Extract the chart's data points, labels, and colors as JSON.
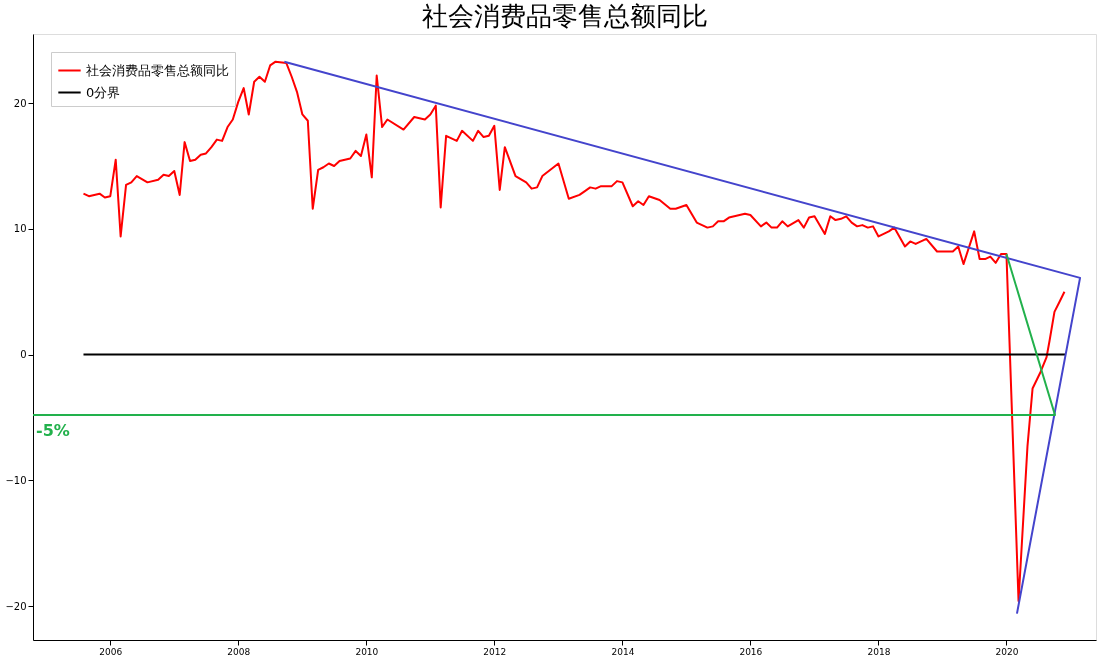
{
  "chart_data": {
    "type": "line",
    "title": "社会消费品零售总额同比",
    "legend": "top left",
    "line_style": "solid",
    "marker": "none",
    "xlim": [
      "2004-10-17",
      "2021-05-26"
    ],
    "xticks": [
      "2006",
      "2008",
      "2010",
      "2012",
      "2014",
      "2016",
      "2018",
      "2020"
    ],
    "ylim": [
      -22.7,
      25.5
    ],
    "yticks": [
      -20,
      -10,
      0,
      10,
      20
    ],
    "series": [
      {
        "name": "社会消费品零售总额同比",
        "color": "#ff0000",
        "x": [
          "2005-08",
          "2005-09",
          "2005-11",
          "2005-12",
          "2006-01",
          "2006-02",
          "2006-03",
          "2006-04",
          "2006-05",
          "2006-06",
          "2006-08",
          "2006-10",
          "2006-11",
          "2006-12",
          "2007-01",
          "2007-02",
          "2007-03",
          "2007-04",
          "2007-05",
          "2007-06",
          "2007-07",
          "2007-08",
          "2007-09",
          "2007-10",
          "2007-11",
          "2007-12",
          "2008-01",
          "2008-02",
          "2008-03",
          "2008-04",
          "2008-05",
          "2008-06",
          "2008-07",
          "2008-08",
          "2008-10",
          "2008-11",
          "2008-12",
          "2009-01",
          "2009-02",
          "2009-03",
          "2009-04",
          "2009-05",
          "2009-06",
          "2009-07",
          "2009-08",
          "2009-10",
          "2009-11",
          "2009-12",
          "2010-01",
          "2010-02",
          "2010-03",
          "2010-04",
          "2010-05",
          "2010-08",
          "2010-10",
          "2010-12",
          "2011-01",
          "2011-02",
          "2011-03",
          "2011-04",
          "2011-06",
          "2011-07",
          "2011-09",
          "2011-10",
          "2011-11",
          "2011-12",
          "2012-01",
          "2012-02",
          "2012-03",
          "2012-05",
          "2012-07",
          "2012-08",
          "2012-09",
          "2012-10",
          "2013-01",
          "2013-03",
          "2013-05",
          "2013-06",
          "2013-07",
          "2013-08",
          "2013-09",
          "2013-11",
          "2013-12",
          "2014-01",
          "2014-03",
          "2014-04",
          "2014-05",
          "2014-06",
          "2014-08",
          "2014-10",
          "2014-11",
          "2015-01",
          "2015-03",
          "2015-05",
          "2015-06",
          "2015-07",
          "2015-08",
          "2015-09",
          "2015-12",
          "2016-01",
          "2016-03",
          "2016-04",
          "2016-05",
          "2016-06",
          "2016-07",
          "2016-08",
          "2016-10",
          "2016-11",
          "2016-12",
          "2017-01",
          "2017-03",
          "2017-04",
          "2017-05",
          "2017-06",
          "2017-07",
          "2017-08",
          "2017-09",
          "2017-10",
          "2017-11",
          "2017-12",
          "2018-01",
          "2018-03",
          "2018-04",
          "2018-06",
          "2018-07",
          "2018-08",
          "2018-10",
          "2018-12",
          "2019-03",
          "2019-04",
          "2019-05",
          "2019-07",
          "2019-08",
          "2019-09",
          "2019-10",
          "2019-11",
          "2019-12",
          "2020-01-01",
          "2020-03-10",
          "2020-04-30",
          "2020-05-29",
          "2020-07-13",
          "2020-08-17",
          "2020-09-03",
          "2020-10-01",
          "2020-10-30",
          "2020-11-27"
        ],
        "values": [
          12.8,
          12.6,
          12.8,
          12.5,
          12.6,
          15.5,
          9.4,
          13.5,
          13.7,
          14.2,
          13.7,
          13.9,
          14.3,
          14.2,
          14.6,
          12.7,
          16.9,
          15.4,
          15.5,
          15.9,
          16.0,
          16.5,
          17.1,
          17.0,
          18.1,
          18.7,
          20.1,
          21.2,
          19.1,
          21.7,
          22.1,
          21.7,
          23.0,
          23.3,
          23.2,
          22.1,
          20.9,
          19.1,
          18.6,
          11.6,
          14.7,
          14.9,
          15.2,
          15.0,
          15.4,
          15.6,
          16.2,
          15.8,
          17.5,
          14.1,
          22.2,
          18.1,
          18.7,
          17.9,
          18.9,
          18.7,
          19.1,
          19.8,
          11.7,
          17.4,
          17.0,
          17.8,
          17.0,
          17.8,
          17.3,
          17.4,
          18.2,
          13.1,
          16.5,
          14.2,
          13.7,
          13.2,
          13.3,
          14.2,
          15.2,
          12.4,
          12.7,
          13.0,
          13.3,
          13.2,
          13.4,
          13.4,
          13.8,
          13.7,
          11.8,
          12.2,
          11.9,
          12.6,
          12.3,
          11.6,
          11.6,
          11.9,
          10.5,
          10.1,
          10.2,
          10.6,
          10.6,
          10.9,
          11.2,
          11.1,
          10.2,
          10.5,
          10.1,
          10.1,
          10.6,
          10.2,
          10.7,
          10.1,
          10.9,
          11.0,
          9.6,
          11.0,
          10.7,
          10.8,
          11.0,
          10.5,
          10.2,
          10.3,
          10.1,
          10.2,
          9.4,
          9.8,
          10.1,
          8.6,
          9.0,
          8.8,
          9.2,
          8.2,
          8.2,
          8.6,
          7.2,
          9.8,
          7.6,
          7.6,
          7.8,
          7.3,
          8.0,
          8.0,
          -19.6,
          -7.3,
          -2.7,
          -1.4,
          -0.2,
          1.1,
          3.4,
          4.2,
          5.0
        ]
      },
      {
        "name": "0分界",
        "color": "#000000",
        "x": [
          "2005-08",
          "2020-12-05"
        ],
        "values": [
          0,
          0
        ]
      },
      {
        "color": "#4444cc",
        "x": [
          "2008-09-20",
          "2021-02-24",
          "2020-03-01"
        ],
        "values": [
          23.3,
          6.1,
          -20.6
        ]
      },
      {
        "color": "#22b14c",
        "x": [
          "2004-10-17",
          "2020-10-04",
          "2020-01-01"
        ],
        "values": [
          -4.8,
          -4.8,
          8.0
        ]
      }
    ],
    "annotations": [
      {
        "text": "-5%",
        "x": "2004-10-17",
        "y": -4.8
      }
    ]
  }
}
